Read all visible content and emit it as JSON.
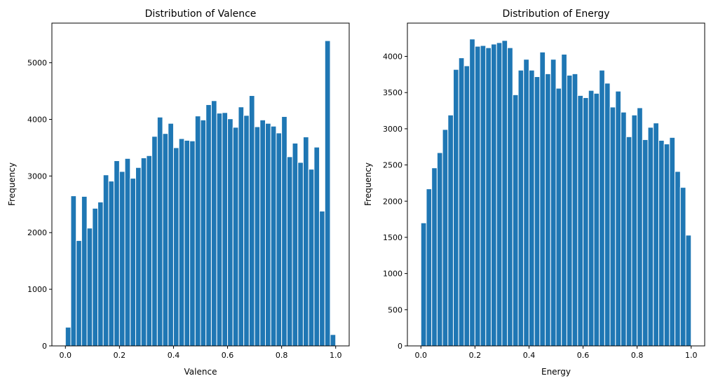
{
  "chart_data": [
    {
      "type": "bar",
      "title": "Distribution of Valence",
      "xlabel": "Valence",
      "ylabel": "Frequency",
      "xlim": [
        -0.05,
        1.05
      ],
      "ylim": [
        0,
        5700
      ],
      "bin_start": 0.0,
      "bin_width": 0.02,
      "values": [
        330,
        2650,
        1860,
        2640,
        2080,
        2430,
        2540,
        3020,
        2910,
        3270,
        3080,
        3310,
        2960,
        3150,
        3320,
        3360,
        3700,
        4040,
        3750,
        3930,
        3500,
        3660,
        3630,
        3620,
        4060,
        3990,
        4260,
        4330,
        4110,
        4120,
        4010,
        3860,
        4220,
        4070,
        4420,
        3870,
        3990,
        3930,
        3880,
        3760,
        4050,
        3340,
        3580,
        3240,
        3690,
        3120,
        3510,
        2380,
        5390,
        200
      ],
      "xticks": [
        0.0,
        0.2,
        0.4,
        0.6,
        0.8,
        1.0
      ],
      "xtick_labels": [
        "0.0",
        "0.2",
        "0.4",
        "0.6",
        "0.8",
        "1.0"
      ],
      "yticks": [
        0,
        1000,
        2000,
        3000,
        4000,
        5000
      ],
      "ytick_labels": [
        "0",
        "1000",
        "2000",
        "3000",
        "4000",
        "5000"
      ],
      "color": "#1f77b4",
      "grid": false
    },
    {
      "type": "bar",
      "title": "Distribution of Energy",
      "xlabel": "Energy",
      "ylabel": "Frequency",
      "xlim": [
        -0.05,
        1.05
      ],
      "ylim": [
        0,
        4460
      ],
      "bin_start": 0.0,
      "bin_width": 0.02,
      "values": [
        1700,
        2170,
        2460,
        2670,
        2990,
        3190,
        3820,
        3980,
        3870,
        4240,
        4140,
        4150,
        4120,
        4170,
        4190,
        4220,
        4120,
        3470,
        3810,
        3960,
        3810,
        3720,
        4060,
        3760,
        3960,
        3560,
        4030,
        3740,
        3760,
        3460,
        3430,
        3530,
        3490,
        3810,
        3630,
        3300,
        3520,
        3230,
        2890,
        3190,
        3290,
        2850,
        3020,
        3080,
        2840,
        2790,
        2880,
        2410,
        2190,
        1530
      ],
      "xticks": [
        0.0,
        0.2,
        0.4,
        0.6,
        0.8,
        1.0
      ],
      "xtick_labels": [
        "0.0",
        "0.2",
        "0.4",
        "0.6",
        "0.8",
        "1.0"
      ],
      "yticks": [
        0,
        500,
        1000,
        1500,
        2000,
        2500,
        3000,
        3500,
        4000
      ],
      "ytick_labels": [
        "0",
        "500",
        "1000",
        "1500",
        "2000",
        "2500",
        "3000",
        "3500",
        "4000"
      ],
      "color": "#1f77b4",
      "grid": false
    }
  ]
}
